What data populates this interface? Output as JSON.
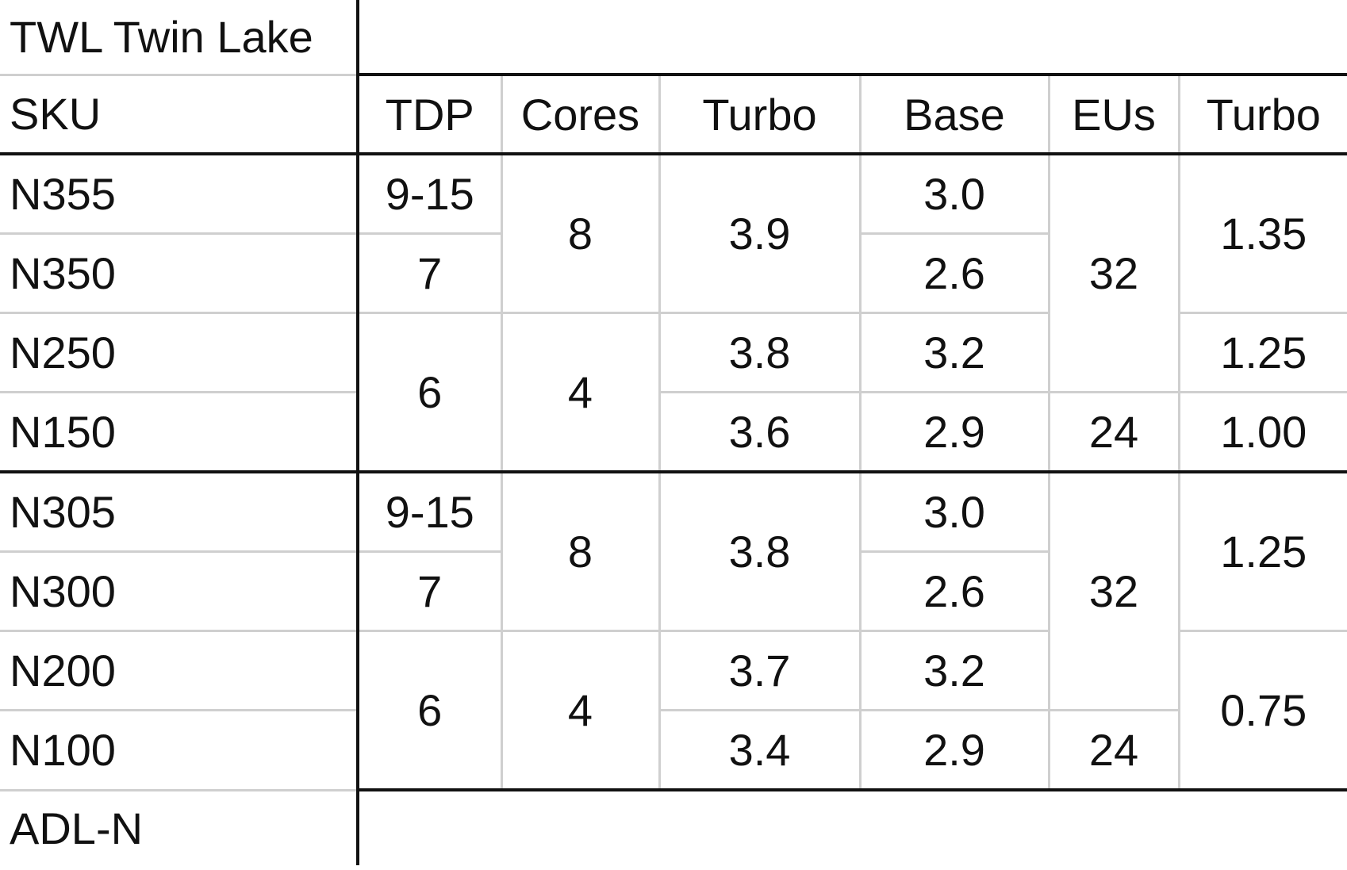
{
  "title": "TWL Twin Lake",
  "footer": "ADL-N",
  "header": [
    "SKU",
    "TDP",
    "Cores",
    "Turbo",
    "Base",
    "EUs",
    "Turbo"
  ],
  "group1": {
    "sku": [
      "N355",
      "N350",
      "N250",
      "N150"
    ],
    "tdp": [
      "9-15",
      "7",
      "6"
    ],
    "cores": [
      "8",
      "4"
    ],
    "turbo": [
      "3.9",
      "3.8",
      "3.6"
    ],
    "base": [
      "3.0",
      "2.6",
      "3.2",
      "2.9"
    ],
    "eus": [
      "32",
      "24"
    ],
    "gpu_turbo": [
      "1.35",
      "1.25",
      "1.00"
    ]
  },
  "group2": {
    "sku": [
      "N305",
      "N300",
      "N200",
      "N100"
    ],
    "tdp": [
      "9-15",
      "7",
      "6"
    ],
    "cores": [
      "8",
      "4"
    ],
    "turbo": [
      "3.8",
      "3.7",
      "3.4"
    ],
    "base": [
      "3.0",
      "2.6",
      "3.2",
      "2.9"
    ],
    "eus": [
      "32",
      "24"
    ],
    "gpu_turbo": [
      "1.25",
      "0.75"
    ]
  }
}
